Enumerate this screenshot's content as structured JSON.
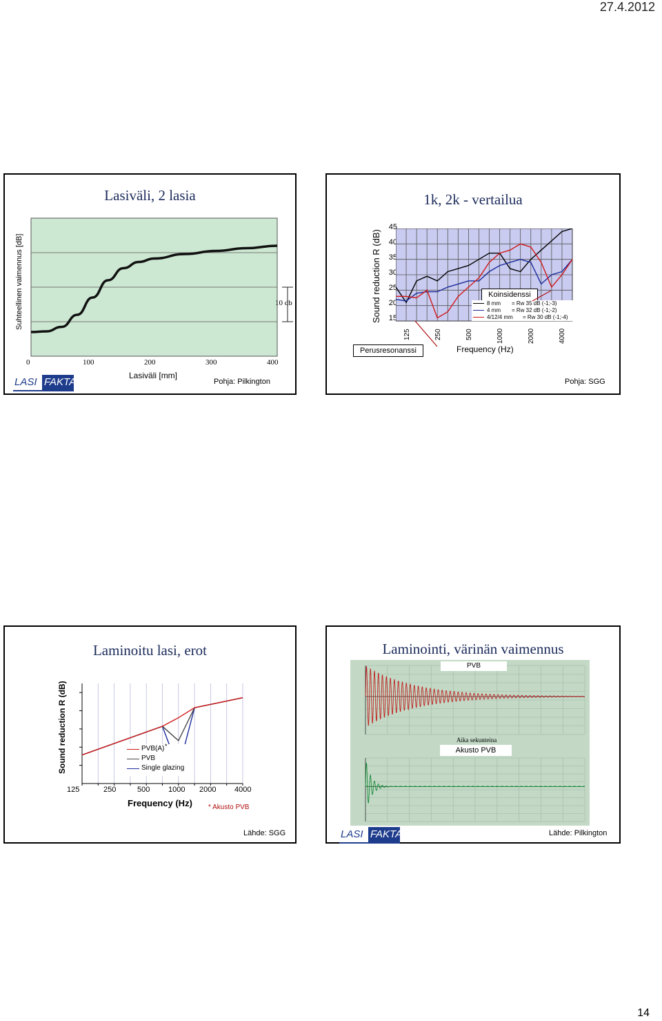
{
  "header": {
    "date": "27.4.2012"
  },
  "page_number": "14",
  "slide1": {
    "title": "Lasiväli, 2 lasia",
    "ylabel": "Suhteellinen vaimennus [dB]",
    "xlabel": "Lasiväli [mm]",
    "xticks": [
      "0",
      "100",
      "200",
      "300",
      "400"
    ],
    "annotation": "10 db",
    "source": "Pohja: Pilkington",
    "logo": {
      "part1": "LASI",
      "part2": "FAKTA"
    }
  },
  "slide2": {
    "title": "1k, 2k - vertailua",
    "ylabel": "Sound reduction R (dB)",
    "xlabel": "Frequency (Hz)",
    "yticks": [
      "45",
      "40",
      "35",
      "30",
      "25",
      "20",
      "15"
    ],
    "xticks": [
      "125",
      "250",
      "500",
      "1000",
      "2000",
      "4000"
    ],
    "callout_coincidence": "Koinsidenssi",
    "callout_resonance": "Perusresonanssi",
    "legend": [
      {
        "name": "8 mm",
        "value": "= Rw 35 dB (-1;-3)",
        "color": "#000000"
      },
      {
        "name": "4 mm",
        "value": "= Rw 32 dB (-1;-2)",
        "color": "#1a2a9a"
      },
      {
        "name": "4/12/4 mm",
        "value": "= Rw 30 dB (-1;-4)",
        "color": "#d01818"
      }
    ],
    "source": "Pohja: SGG"
  },
  "slide3": {
    "title": "Laminoitu lasi, erot",
    "ylabel": "Sound reduction R (dB)",
    "xlabel": "Frequency (Hz)",
    "xticks": [
      "125",
      "250",
      "500",
      "1000",
      "2000",
      "4000"
    ],
    "legend": [
      {
        "name": "PVB(A)",
        "color": "#d01818"
      },
      {
        "name": "PVB",
        "color": "#444444"
      },
      {
        "name": "Single glazing",
        "color": "#1a2a9a"
      }
    ],
    "legend_mark": "*",
    "footnote": "* Akusto PVB",
    "source": "Lähde: SGG"
  },
  "slide4": {
    "title": "Laminointi, värinän vaimennus",
    "label_top": "PVB",
    "label_bottom": "Akusto PVB",
    "axis_caption": "Aika sekunteina",
    "source": "Lähde: Pilkington",
    "logo": {
      "part1": "LASI",
      "part2": "FAKTA"
    }
  },
  "chart_data": [
    {
      "type": "line",
      "title": "Lasiväli, 2 lasia",
      "xlabel": "Lasiväli [mm]",
      "ylabel": "Suhteellinen vaimennus [dB]",
      "xlim": [
        0,
        400
      ],
      "ylim": [
        0,
        40
      ],
      "series": [
        {
          "name": "vaimennus",
          "x": [
            0,
            25,
            50,
            75,
            100,
            125,
            150,
            175,
            200,
            250,
            300,
            350,
            400
          ],
          "y": [
            7,
            7.2,
            8.5,
            12,
            17,
            22,
            25.5,
            27.3,
            28.3,
            29.6,
            30.5,
            31.3,
            32
          ]
        }
      ]
    },
    {
      "type": "line",
      "title": "1k, 2k - vertailua",
      "xlabel": "Frequency (Hz)",
      "ylabel": "Sound reduction R (dB)",
      "ylim": [
        15,
        45
      ],
      "categories": [
        "100",
        "125",
        "160",
        "200",
        "250",
        "315",
        "400",
        "500",
        "630",
        "800",
        "1000",
        "1250",
        "1600",
        "2000",
        "2500",
        "3150",
        "4000",
        "5000"
      ],
      "series": [
        {
          "name": "8 mm",
          "values": [
            26,
            21,
            28,
            29.5,
            28,
            31,
            32,
            33,
            35,
            37,
            37,
            32,
            31,
            35,
            38,
            41,
            44,
            45
          ]
        },
        {
          "name": "4 mm",
          "values": [
            22,
            21.5,
            24,
            24.5,
            24.5,
            26,
            27,
            28,
            28,
            31,
            33,
            34,
            35,
            34,
            27,
            30,
            31,
            35
          ]
        },
        {
          "name": "4/12/4 mm",
          "values": [
            23,
            23,
            22.5,
            25,
            16,
            18,
            23,
            26,
            29,
            34,
            37,
            38,
            40,
            39,
            34,
            26,
            30,
            35
          ]
        }
      ]
    },
    {
      "type": "line",
      "title": "Laminoitu lasi, erot",
      "xlabel": "Frequency (Hz)",
      "ylabel": "Sound reduction R (dB)",
      "categories": [
        "125",
        "250",
        "500",
        "1000",
        "2000",
        "4000"
      ],
      "series": [
        {
          "name": "Single glazing",
          "x": [
            0,
            2.5,
            3,
            3.5,
            5
          ],
          "y": [
            10,
            20,
            5,
            26.5,
            30
          ]
        },
        {
          "name": "PVB",
          "x": [
            0,
            2.5,
            3,
            3.5,
            5
          ],
          "y": [
            10,
            20,
            15,
            26.5,
            30
          ]
        },
        {
          "name": "PVB(A)",
          "x": [
            0,
            2.5,
            3,
            3.5,
            5
          ],
          "y": [
            10,
            20,
            23,
            26.5,
            30
          ]
        }
      ]
    }
  ]
}
